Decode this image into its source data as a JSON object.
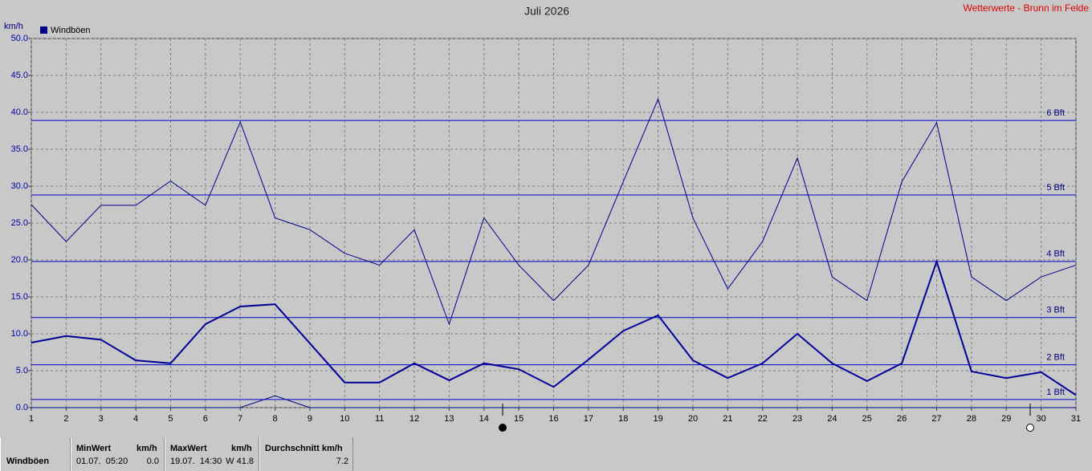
{
  "chart_data": {
    "type": "line",
    "title": "Juli 2026",
    "source": "Wetterwerte - Brunn im Felde",
    "y_unit": "km/h",
    "x": [
      1,
      2,
      3,
      4,
      5,
      6,
      7,
      8,
      9,
      10,
      11,
      12,
      13,
      14,
      15,
      16,
      17,
      18,
      19,
      20,
      21,
      22,
      23,
      24,
      25,
      26,
      27,
      28,
      29,
      30,
      31
    ],
    "xlim": [
      1,
      31
    ],
    "xticks": [
      1,
      2,
      3,
      4,
      5,
      6,
      7,
      8,
      9,
      10,
      11,
      12,
      13,
      14,
      15,
      16,
      17,
      18,
      19,
      20,
      21,
      22,
      23,
      24,
      25,
      26,
      27,
      28,
      29,
      30,
      31
    ],
    "ylim": [
      0,
      50
    ],
    "yticks": [
      {
        "value": 0,
        "label": "0.0"
      },
      {
        "value": 5,
        "label": "5.0"
      },
      {
        "value": 10,
        "label": "10.0"
      },
      {
        "value": 15,
        "label": "15.0"
      },
      {
        "value": 20,
        "label": "20.0"
      },
      {
        "value": 25,
        "label": "25.0"
      },
      {
        "value": 30,
        "label": "30.0"
      },
      {
        "value": 35,
        "label": "35.0"
      },
      {
        "value": 40,
        "label": "40.0"
      },
      {
        "value": 45,
        "label": "45.0"
      },
      {
        "value": 50,
        "label": "50.0"
      }
    ],
    "grid": true,
    "series": [
      {
        "name": "Windböen",
        "color": "#00008b",
        "values": [
          27.5,
          22.5,
          27.4,
          27.4,
          30.7,
          27.4,
          38.7,
          25.7,
          24.1,
          20.9,
          19.3,
          24.1,
          11.3,
          25.7,
          19.3,
          14.5,
          19.3,
          30.6,
          41.8,
          25.7,
          16.1,
          22.5,
          33.8,
          17.7,
          14.5,
          30.6,
          38.6,
          17.7,
          14.5,
          17.7,
          19.3
        ]
      },
      {
        "color": "#000099",
        "values": [
          8.8,
          9.7,
          9.2,
          6.4,
          6.0,
          11.3,
          13.7,
          14.0,
          8.7,
          3.4,
          3.4,
          6.0,
          3.7,
          6.0,
          5.2,
          2.8,
          6.5,
          10.4,
          12.5,
          6.4,
          4.0,
          6.0,
          10.0,
          6.0,
          3.6,
          6.0,
          19.8,
          4.9,
          4.0,
          4.8,
          1.7
        ]
      },
      {
        "color": "#00008b",
        "values": [
          0,
          0,
          0,
          0,
          0,
          0,
          0,
          1.6,
          0,
          0,
          0,
          0,
          0,
          0,
          0,
          0,
          0,
          0,
          0,
          0,
          0,
          0,
          0,
          0,
          0,
          0,
          0,
          0,
          0,
          0,
          0
        ]
      }
    ],
    "reference_lines": [
      {
        "value": 1.1,
        "label": "1 Bft"
      },
      {
        "value": 5.8,
        "label": "2 Bft"
      },
      {
        "value": 12.2,
        "label": "3 Bft"
      },
      {
        "value": 19.8,
        "label": "4 Bft"
      },
      {
        "value": 28.8,
        "label": "5 Bft"
      },
      {
        "value": 38.9,
        "label": "6 Bft"
      }
    ],
    "reference_color": "#0000cc"
  },
  "stats": {
    "label": "Windböen",
    "min": {
      "header": "MinWert",
      "unit": "km/h",
      "time": "01.07.  05:20",
      "value": "0.0"
    },
    "max": {
      "header": "MaxWert",
      "unit": "km/h",
      "time": "19.07.  14:30",
      "value": "W 41.8"
    },
    "avg": {
      "header": "Durchschnitt km/h",
      "value": "7.2"
    }
  }
}
